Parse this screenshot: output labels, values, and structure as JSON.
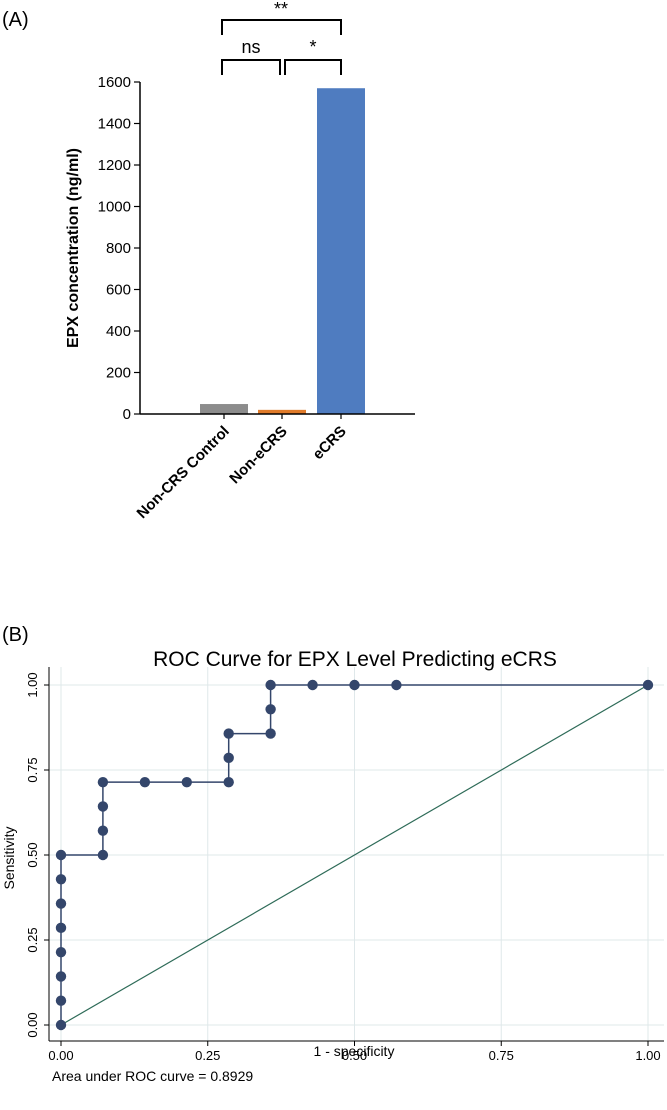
{
  "chart_data": [
    {
      "panel_label": "(A)",
      "type": "bar",
      "categories": [
        "Non-CRS Control",
        "Non-eCRS",
        "eCRS"
      ],
      "values": [
        48,
        20,
        1570
      ],
      "colors": [
        "#8c8c8c",
        "#e07b2a",
        "#4f7cc0"
      ],
      "ylabel": "EPX concentration (ng/ml)",
      "ylim": [
        0,
        1600
      ],
      "yticks": [
        0,
        200,
        400,
        600,
        800,
        1000,
        1200,
        1400,
        1600
      ],
      "grid": false,
      "significance": [
        {
          "from": 0,
          "to": 1,
          "label": "ns"
        },
        {
          "from": 1,
          "to": 2,
          "label": "*"
        },
        {
          "from": 0,
          "to": 2,
          "label": "**"
        }
      ]
    },
    {
      "panel_label": "(B)",
      "type": "line",
      "title": "ROC Curve for EPX Level Predicting eCRS",
      "xlabel": "1 - specificity",
      "ylabel": "Sensitivity",
      "xlim": [
        0,
        1
      ],
      "ylim": [
        0,
        1
      ],
      "xticks": [
        "0.00",
        "0.25",
        "0.50",
        "0.75",
        "1.00"
      ],
      "yticks": [
        "0.00",
        "0.25",
        "0.50",
        "0.75",
        "1.00"
      ],
      "grid": true,
      "line_color": "#34466b",
      "reference_line_color": "#2e6b58",
      "series": [
        {
          "x": [
            0,
            0,
            0,
            0,
            0,
            0,
            0,
            0,
            0.0714,
            0.0714,
            0.0714,
            0.0714,
            0.1429,
            0.2143,
            0.2857,
            0.2857,
            0.2857,
            0.3571,
            0.3571,
            0.3571,
            0.4286,
            0.5,
            0.5714,
            1.0
          ],
          "y": [
            0,
            0.0714,
            0.1429,
            0.2143,
            0.2857,
            0.3571,
            0.4286,
            0.5,
            0.5,
            0.5714,
            0.6429,
            0.7143,
            0.7143,
            0.7143,
            0.7143,
            0.7857,
            0.8571,
            0.8571,
            0.9286,
            1.0,
            1.0,
            1.0,
            1.0,
            1.0
          ]
        }
      ],
      "reference_line": {
        "x": [
          0,
          1
        ],
        "y": [
          0,
          1
        ]
      },
      "annotation": "Area under ROC curve = 0.8929"
    }
  ]
}
